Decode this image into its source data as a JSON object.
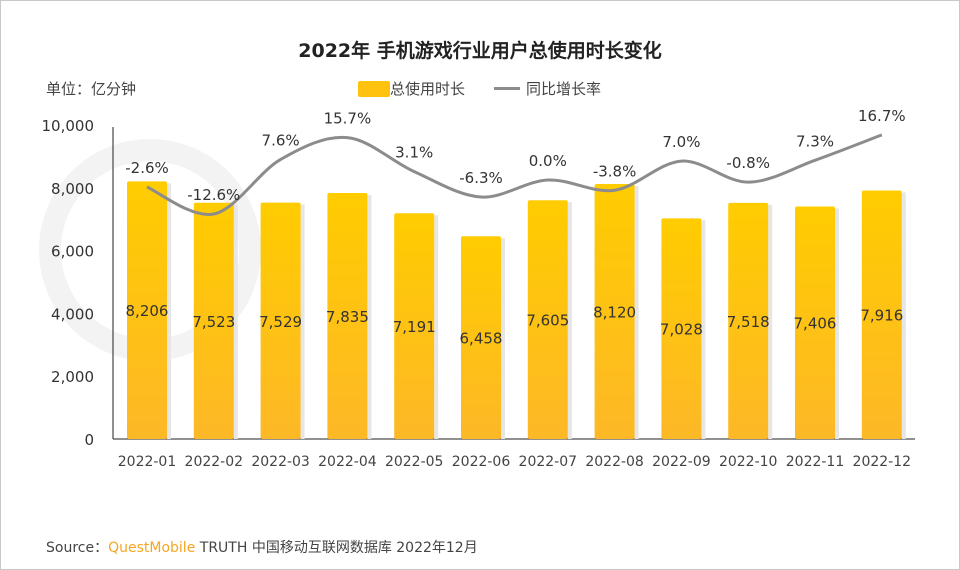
{
  "title": "2022年 手机游戏行业用户总使用时长变化",
  "unit_label": "单位：亿分钟",
  "source": {
    "prefix": "Source：",
    "brand": "QuestMobile",
    "rest": "TRUTH 中国移动互联网数据库 2022年12月"
  },
  "colors": {
    "bar": "#FFC30F",
    "line": "#8c8c8c"
  },
  "chart_data": {
    "type": "bar",
    "title": "2022年 手机游戏行业用户总使用时长变化",
    "categories": [
      "2022-01",
      "2022-02",
      "2022-03",
      "2022-04",
      "2022-05",
      "2022-06",
      "2022-07",
      "2022-08",
      "2022-09",
      "2022-10",
      "2022-11",
      "2022-12"
    ],
    "ylim": [
      0,
      10000
    ],
    "yticks": [
      "0",
      "2,000",
      "4,000",
      "6,000",
      "8,000",
      "10,000"
    ],
    "legend_position": "top",
    "grid": false,
    "series": [
      {
        "name": "总使用时长",
        "type": "bar",
        "values": [
          8206,
          7523,
          7529,
          7835,
          7191,
          6458,
          7605,
          8120,
          7028,
          7518,
          7406,
          7916
        ],
        "labels": [
          "8,206",
          "7,523",
          "7,529",
          "7,835",
          "7,191",
          "6,458",
          "7,605",
          "8,120",
          "7,028",
          "7,518",
          "7,406",
          "7,916"
        ]
      },
      {
        "name": "同比增长率",
        "type": "line",
        "values": [
          -2.6,
          -12.6,
          7.6,
          15.7,
          3.1,
          -6.3,
          0.0,
          -3.8,
          7.0,
          -0.8,
          7.3,
          16.7
        ],
        "labels": [
          "-2.6%",
          "-12.6%",
          "7.6%",
          "15.7%",
          "3.1%",
          "-6.3%",
          "0.0%",
          "-3.8%",
          "7.0%",
          "-0.8%",
          "7.3%",
          "16.7%"
        ]
      }
    ]
  }
}
